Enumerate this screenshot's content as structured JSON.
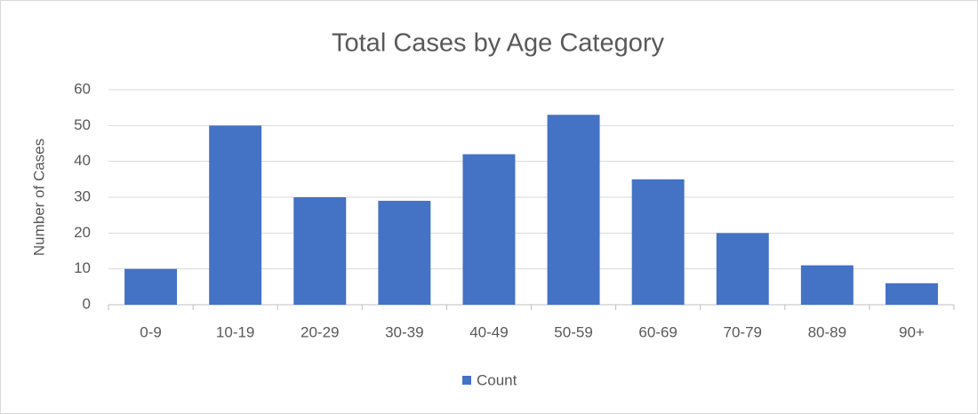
{
  "chart_data": {
    "type": "bar",
    "title": "Total Cases by Age Category",
    "y_label": "Number of Cases",
    "categories": [
      "0-9",
      "10-19",
      "20-29",
      "30-39",
      "40-49",
      "50-59",
      "60-69",
      "70-79",
      "80-89",
      "90+"
    ],
    "series": [
      {
        "name": "Count",
        "color": "#4472c4",
        "values": [
          10,
          50,
          30,
          29,
          42,
          53,
          35,
          20,
          11,
          6
        ]
      }
    ],
    "ylim": [
      0,
      60
    ],
    "yticks": [
      0,
      10,
      20,
      30,
      40,
      50,
      60
    ],
    "grid": true,
    "legend": "bottom"
  }
}
